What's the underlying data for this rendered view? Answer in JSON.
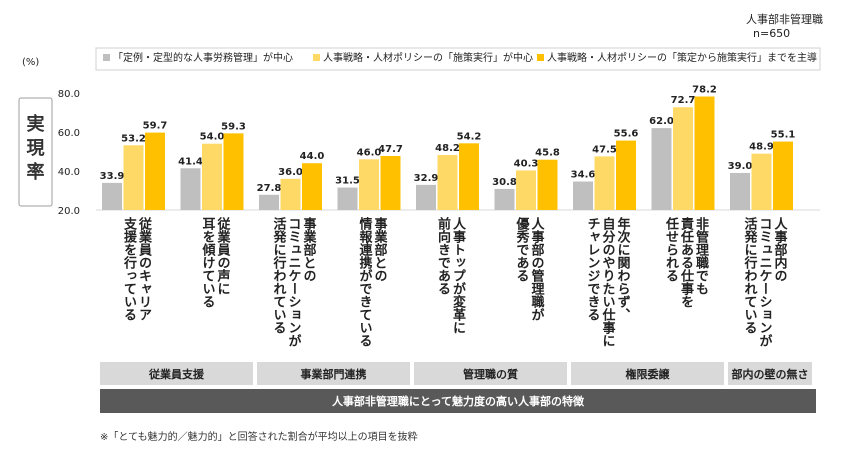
{
  "respondent": {
    "group": "人事部非管理職",
    "n": "n=650"
  },
  "chart_data": {
    "type": "bar",
    "unit": "(%)",
    "ylabel": "実現率",
    "ylim": [
      20,
      80
    ],
    "yticks": [
      "20.0",
      "40.0",
      "60.0",
      "80.0"
    ],
    "ytick_values": [
      20,
      40,
      60,
      80
    ],
    "legend_position": "top",
    "categories": [
      "従業員のキャリア支援を行っている",
      "従業員の声に耳を傾けている",
      "事業部とのコミュニケーションが活発に行われている",
      "事業部との情報連携ができている",
      "人事トップが変革に前向きである",
      "人事部の管理職が優秀である",
      "年次に関わらず、自分のやりたい仕事にチャレンジできる",
      "非管理職でも責任ある仕事を任せられる",
      "人事部内のコミュニケーションが活発に行われている"
    ],
    "category_lines": [
      [
        "従業員のキャリア",
        "支援を行っている"
      ],
      [
        "従業員の声に",
        "耳を傾けている"
      ],
      [
        "事業部との",
        "コミュニケーションが",
        "活発に行われている"
      ],
      [
        "事業部との",
        "情報連携ができている"
      ],
      [
        "人事トップが変革に",
        "前向きである"
      ],
      [
        "人事部の管理職が",
        "優秀である"
      ],
      [
        "年次に関わらず、",
        "自分のやりたい仕事に",
        "チャレンジできる"
      ],
      [
        "非管理職でも",
        "責任ある仕事を",
        "任せられる"
      ],
      [
        "人事部内の",
        "コミュニケーションが",
        "活発に行われている"
      ]
    ],
    "series": [
      {
        "name": "「定例・定型的な人事労務管理」が中心",
        "color": "#bfbfbf",
        "values": [
          33.9,
          41.4,
          27.8,
          31.5,
          32.9,
          30.8,
          34.6,
          62.0,
          39.0
        ]
      },
      {
        "name": "人事戦略・人材ポリシーの「施策実行」が中心",
        "color": "#ffd966",
        "values": [
          53.2,
          54.0,
          36.0,
          46.0,
          48.2,
          40.3,
          47.5,
          72.7,
          48.9
        ]
      },
      {
        "name": "人事戦略・人材ポリシーの「策定から施策実行」までを主導",
        "color": "#ffc000",
        "values": [
          59.7,
          59.3,
          44.0,
          47.7,
          54.2,
          45.8,
          55.6,
          78.2,
          55.1
        ]
      }
    ],
    "groups": [
      {
        "label": "従業員支援",
        "count": 2
      },
      {
        "label": "事業部門連携",
        "count": 2
      },
      {
        "label": "管理職の質",
        "count": 2
      },
      {
        "label": "権限委譲",
        "count": 2
      },
      {
        "label": "部内の壁の無さ",
        "count": 1
      }
    ],
    "banner": "人事部非管理職にとって魅力度の高い人事部の特徴"
  },
  "footnote": "※「とても魅力的／魅力的」と回答された割合が平均以上の項目を抜粋"
}
